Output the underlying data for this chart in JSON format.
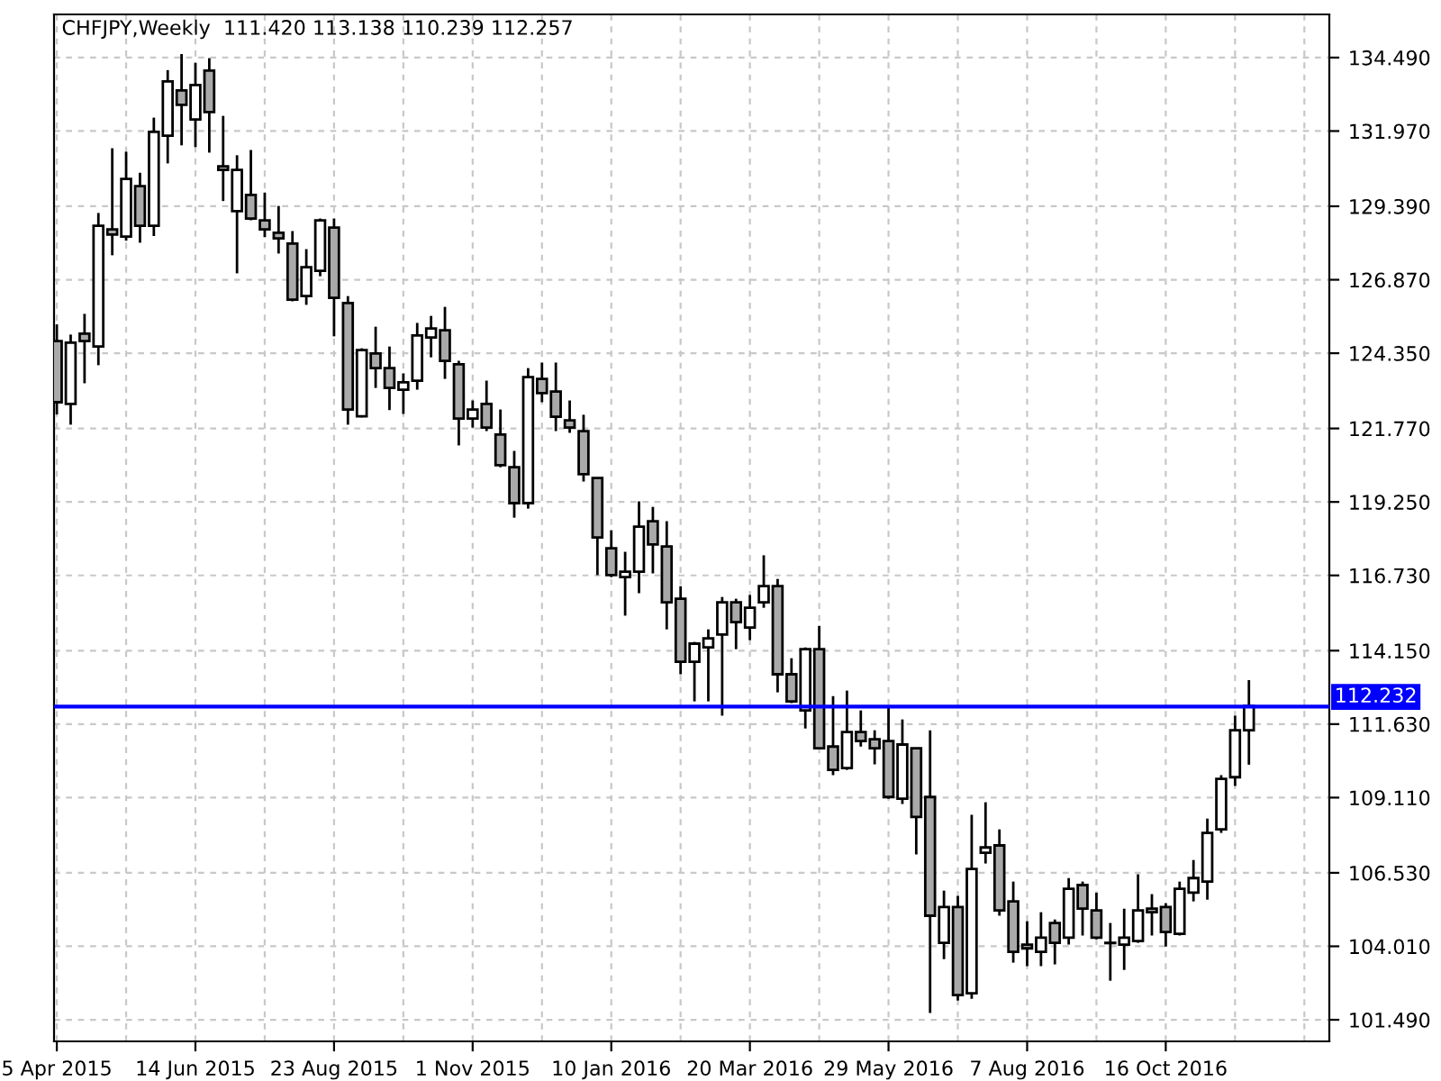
{
  "chart_data": {
    "type": "candlestick",
    "title": "CHFJPY,Weekly  111.420 113.138 110.239 112.257",
    "categories": [
      "5 Apr 2015",
      null,
      null,
      null,
      null,
      null,
      null,
      null,
      null,
      null,
      "14 Jun 2015",
      null,
      null,
      null,
      null,
      null,
      null,
      null,
      null,
      null,
      "23 Aug 2015",
      null,
      null,
      null,
      null,
      null,
      null,
      null,
      null,
      null,
      "1 Nov 2015",
      null,
      null,
      null,
      null,
      null,
      null,
      null,
      null,
      null,
      "10 Jan 2016",
      null,
      null,
      null,
      null,
      null,
      null,
      null,
      null,
      null,
      "20 Mar 2016",
      null,
      null,
      null,
      null,
      null,
      null,
      null,
      null,
      null,
      "29 May 2016",
      null,
      null,
      null,
      null,
      null,
      null,
      null,
      null,
      null,
      "7 Aug 2016",
      null,
      null,
      null,
      null,
      null,
      null,
      null,
      null,
      null,
      "16 Oct 2016",
      null,
      null,
      null,
      null,
      null,
      null
    ],
    "ohlc": [
      [
        124.77,
        125.34,
        122.25,
        122.67
      ],
      [
        122.61,
        124.99,
        121.9,
        124.71
      ],
      [
        125.02,
        125.7,
        123.32,
        124.77
      ],
      [
        124.58,
        129.16,
        123.94,
        128.72
      ],
      [
        128.6,
        131.38,
        127.71,
        128.42
      ],
      [
        128.35,
        131.26,
        128.21,
        130.33
      ],
      [
        130.08,
        130.54,
        128.14,
        128.72
      ],
      [
        128.72,
        132.43,
        128.37,
        131.94
      ],
      [
        131.81,
        134.06,
        130.86,
        133.67
      ],
      [
        133.36,
        134.61,
        131.48,
        132.87
      ],
      [
        132.37,
        134.31,
        131.42,
        133.55
      ],
      [
        134.04,
        134.47,
        131.23,
        132.62
      ],
      [
        130.76,
        132.49,
        129.57,
        130.64
      ],
      [
        129.22,
        131.14,
        127.09,
        130.64
      ],
      [
        129.78,
        131.32,
        128.91,
        128.97
      ],
      [
        128.91,
        129.86,
        128.33,
        128.6
      ],
      [
        128.48,
        129.4,
        127.77,
        128.29
      ],
      [
        128.11,
        128.54,
        126.13,
        126.19
      ],
      [
        126.31,
        127.92,
        126.01,
        127.3
      ],
      [
        127.18,
        128.97,
        126.99,
        128.91
      ],
      [
        128.66,
        128.97,
        124.93,
        126.25
      ],
      [
        126.07,
        126.31,
        121.9,
        122.42
      ],
      [
        122.19,
        124.52,
        122.15,
        124.46
      ],
      [
        124.34,
        125.26,
        123.16,
        123.84
      ],
      [
        123.84,
        124.58,
        122.4,
        123.16
      ],
      [
        123.1,
        123.66,
        122.27,
        123.35
      ],
      [
        123.41,
        125.39,
        123.1,
        124.96
      ],
      [
        124.89,
        125.63,
        124.21,
        125.2
      ],
      [
        125.14,
        125.94,
        123.47,
        124.09
      ],
      [
        123.97,
        124.09,
        121.19,
        122.11
      ],
      [
        122.11,
        122.73,
        121.8,
        122.42
      ],
      [
        122.61,
        123.41,
        121.68,
        121.8
      ],
      [
        121.56,
        122.42,
        120.44,
        120.51
      ],
      [
        120.44,
        121.0,
        118.71,
        119.21
      ],
      [
        119.21,
        123.84,
        119.02,
        123.53
      ],
      [
        123.47,
        124.03,
        122.67,
        122.98
      ],
      [
        123.04,
        124.03,
        121.68,
        122.17
      ],
      [
        122.05,
        122.73,
        121.62,
        121.8
      ],
      [
        121.68,
        122.24,
        119.95,
        120.2
      ],
      [
        120.07,
        120.07,
        116.74,
        118.03
      ],
      [
        117.66,
        118.28,
        116.67,
        116.74
      ],
      [
        116.67,
        117.54,
        115.35,
        116.86
      ],
      [
        116.86,
        119.27,
        116.12,
        118.4
      ],
      [
        118.59,
        119.08,
        116.8,
        117.79
      ],
      [
        117.72,
        118.59,
        114.88,
        115.81
      ],
      [
        115.93,
        116.36,
        113.34,
        113.77
      ],
      [
        113.77,
        114.45,
        112.41,
        114.39
      ],
      [
        114.26,
        114.88,
        112.41,
        114.57
      ],
      [
        114.7,
        115.99,
        111.92,
        115.81
      ],
      [
        115.81,
        115.93,
        114.2,
        115.13
      ],
      [
        114.94,
        116.06,
        114.51,
        115.62
      ],
      [
        115.81,
        117.42,
        115.62,
        116.36
      ],
      [
        116.36,
        116.61,
        112.72,
        113.34
      ],
      [
        113.34,
        113.89,
        112.35,
        112.41
      ],
      [
        112.1,
        114.26,
        111.48,
        114.2
      ],
      [
        114.2,
        115.0,
        110.76,
        110.8
      ],
      [
        110.86,
        112.59,
        109.88,
        110.06
      ],
      [
        110.12,
        112.78,
        110.06,
        111.36
      ],
      [
        111.36,
        112.1,
        110.86,
        111.05
      ],
      [
        111.11,
        111.42,
        110.25,
        110.8
      ],
      [
        111.05,
        112.22,
        109.07,
        109.13
      ],
      [
        109.07,
        111.79,
        108.89,
        110.93
      ],
      [
        110.8,
        110.8,
        107.16,
        108.45
      ],
      [
        109.13,
        111.42,
        101.72,
        105.06
      ],
      [
        104.13,
        105.92,
        103.57,
        105.36
      ],
      [
        105.36,
        105.74,
        102.15,
        102.34
      ],
      [
        102.4,
        108.52,
        102.21,
        106.66
      ],
      [
        107.22,
        108.95,
        106.85,
        107.4
      ],
      [
        107.47,
        108.02,
        105.06,
        105.24
      ],
      [
        105.55,
        106.23,
        103.45,
        103.82
      ],
      [
        104.07,
        104.87,
        103.33,
        103.94
      ],
      [
        103.82,
        105.18,
        103.33,
        104.31
      ],
      [
        104.81,
        104.93,
        103.39,
        104.13
      ],
      [
        104.31,
        106.35,
        104.07,
        105.98
      ],
      [
        106.11,
        106.23,
        104.38,
        105.3
      ],
      [
        105.24,
        105.85,
        104.25,
        104.31
      ],
      [
        104.13,
        104.81,
        102.83,
        104.12
      ],
      [
        104.07,
        105.3,
        103.2,
        104.31
      ],
      [
        104.19,
        106.48,
        104.13,
        105.24
      ],
      [
        105.3,
        105.8,
        104.38,
        105.18
      ],
      [
        105.36,
        105.49,
        104.0,
        104.5
      ],
      [
        104.44,
        106.23,
        104.38,
        105.98
      ],
      [
        105.85,
        106.97,
        105.55,
        106.35
      ],
      [
        106.23,
        108.39,
        105.61,
        107.9
      ],
      [
        108.02,
        109.88,
        107.9,
        109.75
      ],
      [
        109.81,
        111.92,
        109.51,
        111.42
      ],
      [
        111.42,
        113.138,
        110.239,
        112.257
      ]
    ],
    "ylim": [
      100.75,
      135.97
    ],
    "yticks": [
      {
        "value": 134.49,
        "label": "134.490"
      },
      {
        "value": 131.97,
        "label": "131.970"
      },
      {
        "value": 129.39,
        "label": "129.390"
      },
      {
        "value": 126.87,
        "label": "126.870"
      },
      {
        "value": 124.35,
        "label": "124.350"
      },
      {
        "value": 121.77,
        "label": "121.770"
      },
      {
        "value": 119.25,
        "label": "119.250"
      },
      {
        "value": 116.73,
        "label": "116.730"
      },
      {
        "value": 114.15,
        "label": "114.150"
      },
      {
        "value": 111.63,
        "label": "111.630"
      },
      {
        "value": 109.11,
        "label": "109.110"
      },
      {
        "value": 106.53,
        "label": "106.530"
      },
      {
        "value": 104.01,
        "label": "104.010"
      },
      {
        "value": 101.49,
        "label": "101.490"
      }
    ],
    "ref_lines": [
      {
        "axis": "y",
        "value": 112.232,
        "label": "112.232",
        "color": "#0000ff",
        "line_style": "solid"
      }
    ],
    "grid": true
  }
}
